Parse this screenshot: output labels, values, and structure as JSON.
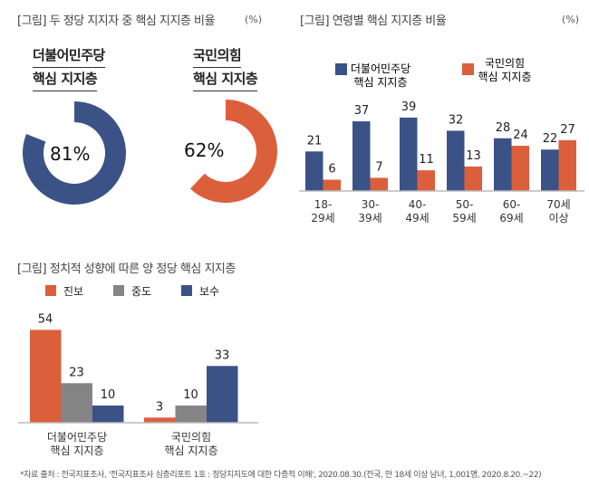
{
  "colors": {
    "blue": "#3b5287",
    "orange": "#dc5f3c",
    "gray": "#858585"
  },
  "chart_data": [
    {
      "type": "pie",
      "title": "[그림] 두 정당 지지자 중 핵심 지지층 비율",
      "unit": "(%)",
      "series": [
        {
          "name_line1": "더불어민주당",
          "name_line2": "핵심 지지층",
          "value": 81,
          "label": "81%"
        },
        {
          "name_line1": "국민의힘",
          "name_line2": "핵심 지지층",
          "value": 62,
          "label": "62%"
        }
      ]
    },
    {
      "type": "bar",
      "title": "[그림] 연령별 핵심 지지층 비율",
      "unit": "(%)",
      "categories": [
        [
          "18-",
          "29세"
        ],
        [
          "30-",
          "39세"
        ],
        [
          "40-",
          "49세"
        ],
        [
          "50-",
          "59세"
        ],
        [
          "60-",
          "69세"
        ],
        [
          "70세",
          "이상"
        ]
      ],
      "series": [
        {
          "name": [
            "더불어민주당",
            "핵심 지지층"
          ],
          "values": [
            21,
            37,
            39,
            32,
            28,
            22
          ]
        },
        {
          "name": [
            "국민의힘",
            "핵심 지지층"
          ],
          "values": [
            6,
            7,
            11,
            13,
            24,
            27
          ]
        }
      ]
    },
    {
      "type": "bar",
      "title": "[그림] 정치적 성향에 따른 양 정당 핵심 지지층",
      "legend": [
        "진보",
        "중도",
        "보수"
      ],
      "categories": [
        [
          "더불어민주당",
          "핵심 지지층"
        ],
        [
          "국민의힘",
          "핵심 지지층"
        ]
      ],
      "series": [
        {
          "name": "진보",
          "values": [
            54,
            3
          ]
        },
        {
          "name": "중도",
          "values": [
            23,
            10
          ]
        },
        {
          "name": "보수",
          "values": [
            10,
            33
          ]
        }
      ]
    }
  ],
  "source": "*자료 출처 : 전국지표조사, '전국지표조사 심층리포트 1호 : 정당지지도에 대한 다층적 이해', 2020.08.30.(전국, 만 18세 이상 남녀, 1,001명, 2020.8.20.~22)"
}
